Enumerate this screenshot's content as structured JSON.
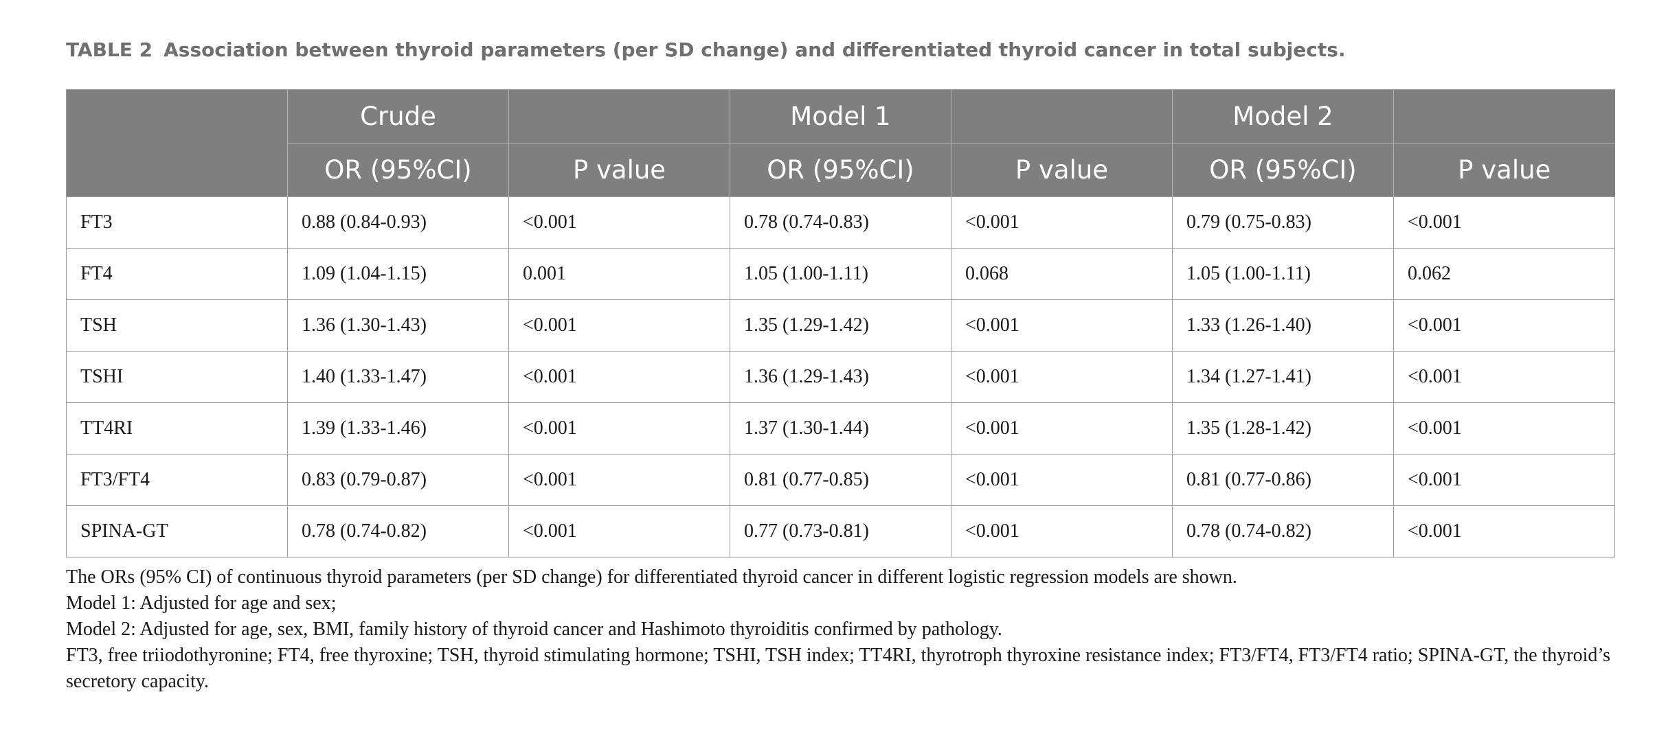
{
  "caption": {
    "label": "TABLE 2",
    "text": "Association between thyroid parameters (per SD change) and differentiated thyroid cancer in total subjects."
  },
  "table": {
    "header_top": [
      "",
      "Crude",
      "",
      "Model 1",
      "",
      "Model 2",
      ""
    ],
    "header_sub": [
      "OR (95%CI)",
      "P value",
      "OR (95%CI)",
      "P value",
      "OR (95%CI)",
      "P value"
    ],
    "rows": [
      {
        "label": "FT3",
        "cells": [
          "0.88 (0.84-0.93)",
          "<0.001",
          "0.78 (0.74-0.83)",
          "<0.001",
          "0.79 (0.75-0.83)",
          "<0.001"
        ]
      },
      {
        "label": "FT4",
        "cells": [
          "1.09 (1.04-1.15)",
          "0.001",
          "1.05 (1.00-1.11)",
          "0.068",
          "1.05 (1.00-1.11)",
          "0.062"
        ]
      },
      {
        "label": "TSH",
        "cells": [
          "1.36 (1.30-1.43)",
          "<0.001",
          "1.35 (1.29-1.42)",
          "<0.001",
          "1.33 (1.26-1.40)",
          "<0.001"
        ]
      },
      {
        "label": "TSHI",
        "cells": [
          "1.40 (1.33-1.47)",
          "<0.001",
          "1.36 (1.29-1.43)",
          "<0.001",
          "1.34 (1.27-1.41)",
          "<0.001"
        ]
      },
      {
        "label": "TT4RI",
        "cells": [
          "1.39 (1.33-1.46)",
          "<0.001",
          "1.37 (1.30-1.44)",
          "<0.001",
          "1.35 (1.28-1.42)",
          "<0.001"
        ]
      },
      {
        "label": "FT3/FT4",
        "cells": [
          "0.83 (0.79-0.87)",
          "<0.001",
          "0.81 (0.77-0.85)",
          "<0.001",
          "0.81 (0.77-0.86)",
          "<0.001"
        ]
      },
      {
        "label": "SPINA-GT",
        "cells": [
          "0.78 (0.74-0.82)",
          "<0.001",
          "0.77 (0.73-0.81)",
          "<0.001",
          "0.78 (0.74-0.82)",
          "<0.001"
        ]
      }
    ]
  },
  "notes": [
    "The ORs (95% CI) of continuous thyroid parameters (per SD change) for differentiated thyroid cancer in different logistic regression models are shown.",
    "Model 1: Adjusted for age and sex;",
    "Model 2: Adjusted for age, sex, BMI, family history of thyroid cancer and Hashimoto thyroiditis confirmed by pathology.",
    "FT3, free triiodothyronine; FT4, free thyroxine; TSH, thyroid stimulating hormone; TSHI, TSH index; TT4RI, thyrotroph thyroxine resistance index; FT3/FT4, FT3/FT4 ratio; SPINA-GT, the thyroid’s secretory capacity."
  ],
  "colors": {
    "header_bg": "#7f7f7f",
    "header_text": "#ffffff",
    "caption_text": "#6f6f6f",
    "border": "#9a9a9a"
  }
}
